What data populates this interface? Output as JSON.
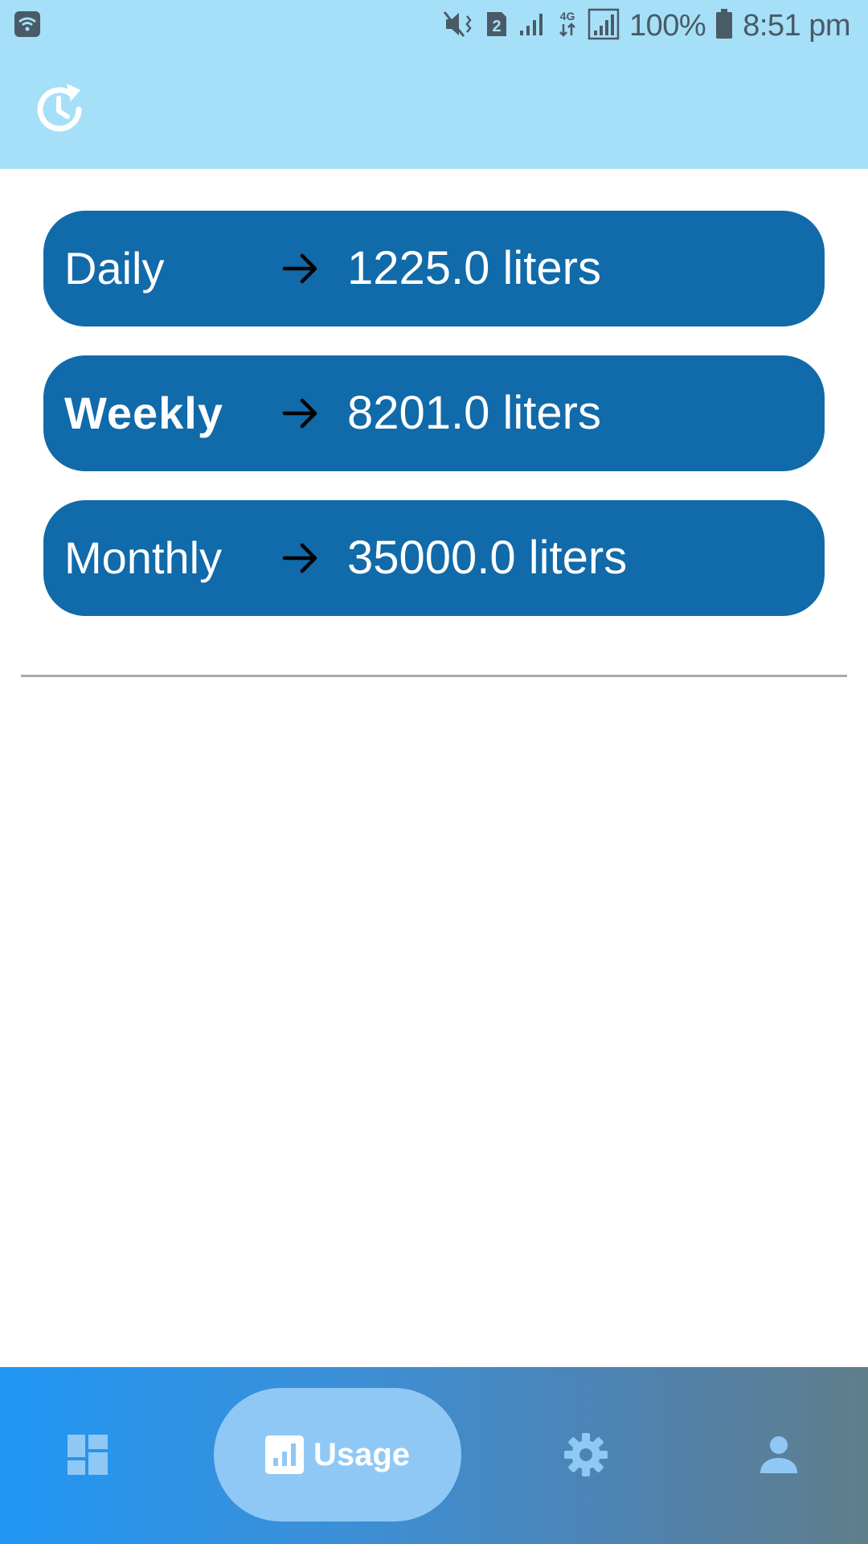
{
  "status_bar": {
    "battery_percent": "100%",
    "time": "8:51 pm",
    "sim_slot": "2",
    "network_type": "4G",
    "icons": [
      "wifi-icon",
      "mute-vibrate-icon",
      "sim-2-icon",
      "signal-icon",
      "network-4g-icon",
      "signal-boxed-icon",
      "battery-icon"
    ]
  },
  "toolbar": {
    "history_icon": "history-refresh-icon"
  },
  "usage": {
    "items": [
      {
        "label": "Daily",
        "value": "1225.0 liters"
      },
      {
        "label": "Weekly",
        "value": "8201.0 liters"
      },
      {
        "label": "Monthly",
        "value": "35000.0 liters"
      }
    ],
    "arrow_icon": "arrow-right-icon"
  },
  "bottom_nav": {
    "items": [
      {
        "icon": "dashboard-icon",
        "label": ""
      },
      {
        "icon": "bar-chart-icon",
        "label": "Usage",
        "active": true
      },
      {
        "icon": "gear-icon",
        "label": ""
      },
      {
        "icon": "person-icon",
        "label": ""
      }
    ]
  },
  "colors": {
    "topbar": "#a5e0f8",
    "card": "#116aa9",
    "nav_gradient_start": "#2196f3",
    "nav_gradient_end": "#607d8b",
    "nav_active_pill": "#90c8f5"
  }
}
